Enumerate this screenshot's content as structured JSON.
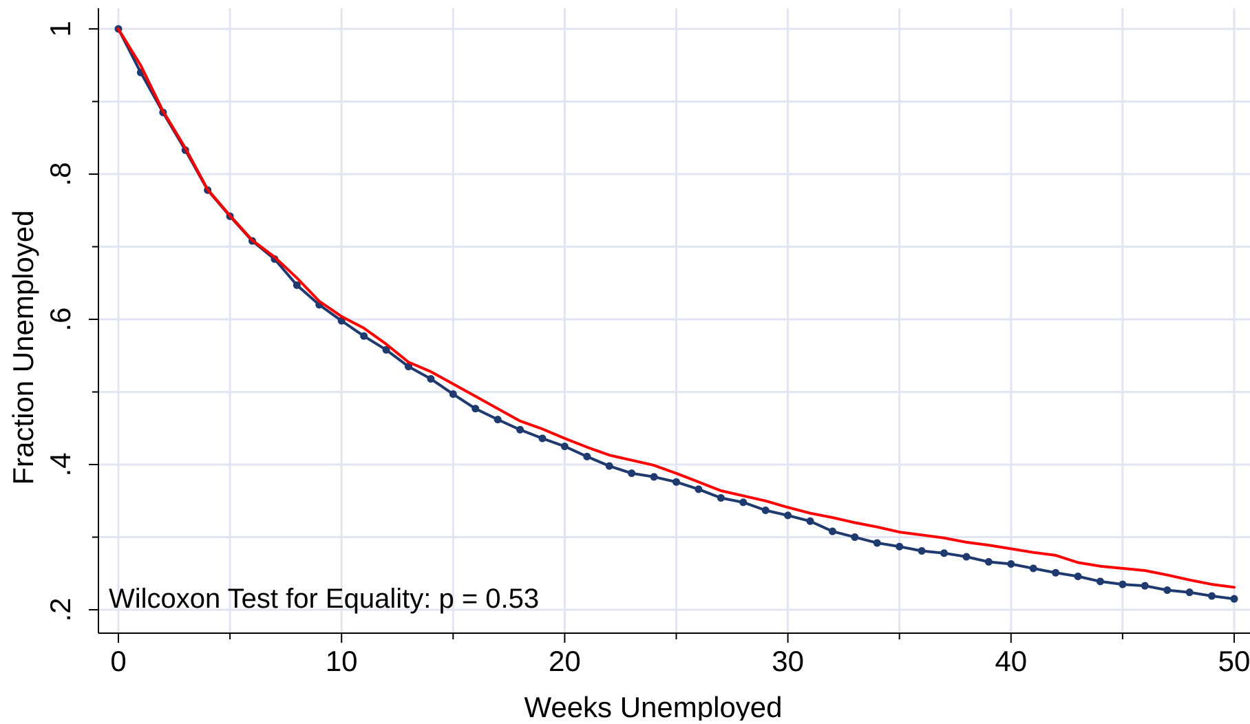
{
  "colors": {
    "background": "#ffffff",
    "grid": "#e0e5f1",
    "series_navy": "#1f3a6e",
    "series_red": "#ff0000"
  },
  "chart_data": {
    "type": "line",
    "title": "",
    "xlabel": "Weeks Unemployed",
    "ylabel": "Fraction Unemployed",
    "xlim": [
      0,
      50
    ],
    "ylim": [
      0.2,
      1
    ],
    "grid": true,
    "x_ticks": [
      {
        "value": 0,
        "label": "0"
      },
      {
        "value": 10,
        "label": "10"
      },
      {
        "value": 20,
        "label": "20"
      },
      {
        "value": 30,
        "label": "30"
      },
      {
        "value": 40,
        "label": "40"
      },
      {
        "value": 50,
        "label": "50"
      }
    ],
    "x_minor_ticks": [
      5,
      15,
      25,
      35,
      45
    ],
    "y_ticks": [
      {
        "value": 0.2,
        "label": ".2"
      },
      {
        "value": 0.4,
        "label": ".4"
      },
      {
        "value": 0.6,
        "label": ".6"
      },
      {
        "value": 0.8,
        "label": ".8"
      },
      {
        "value": 1,
        "label": "1"
      }
    ],
    "y_minor_ticks": [
      0.3,
      0.5,
      0.7,
      0.9
    ],
    "x": [
      0,
      1,
      2,
      3,
      4,
      5,
      6,
      7,
      8,
      9,
      10,
      11,
      12,
      13,
      14,
      15,
      16,
      17,
      18,
      19,
      20,
      21,
      22,
      23,
      24,
      25,
      26,
      27,
      28,
      29,
      30,
      31,
      32,
      33,
      34,
      35,
      36,
      37,
      38,
      39,
      40,
      41,
      42,
      43,
      44,
      45,
      46,
      47,
      48,
      49,
      50
    ],
    "series": [
      {
        "color": "#1f3a6e",
        "markers": true,
        "values": [
          1.0,
          0.94,
          0.885,
          0.833,
          0.778,
          0.742,
          0.708,
          0.683,
          0.647,
          0.62,
          0.598,
          0.577,
          0.558,
          0.535,
          0.518,
          0.497,
          0.477,
          0.462,
          0.448,
          0.436,
          0.425,
          0.411,
          0.398,
          0.388,
          0.383,
          0.376,
          0.366,
          0.354,
          0.348,
          0.337,
          0.33,
          0.322,
          0.308,
          0.3,
          0.292,
          0.287,
          0.281,
          0.278,
          0.273,
          0.266,
          0.263,
          0.257,
          0.251,
          0.246,
          0.239,
          0.235,
          0.233,
          0.227,
          0.224,
          0.219,
          0.215
        ]
      },
      {
        "color": "#ff0000",
        "markers": false,
        "values": [
          1.0,
          0.95,
          0.887,
          0.836,
          0.779,
          0.743,
          0.709,
          0.686,
          0.657,
          0.625,
          0.604,
          0.588,
          0.566,
          0.541,
          0.528,
          0.511,
          0.494,
          0.477,
          0.46,
          0.449,
          0.436,
          0.424,
          0.413,
          0.406,
          0.399,
          0.388,
          0.376,
          0.364,
          0.357,
          0.35,
          0.341,
          0.333,
          0.327,
          0.32,
          0.314,
          0.307,
          0.303,
          0.299,
          0.293,
          0.289,
          0.284,
          0.279,
          0.275,
          0.265,
          0.26,
          0.257,
          0.254,
          0.248,
          0.241,
          0.235,
          0.231
        ]
      }
    ],
    "annotations": [
      {
        "text": "Wilcoxon Test for Equality: p = 0.53"
      }
    ]
  }
}
